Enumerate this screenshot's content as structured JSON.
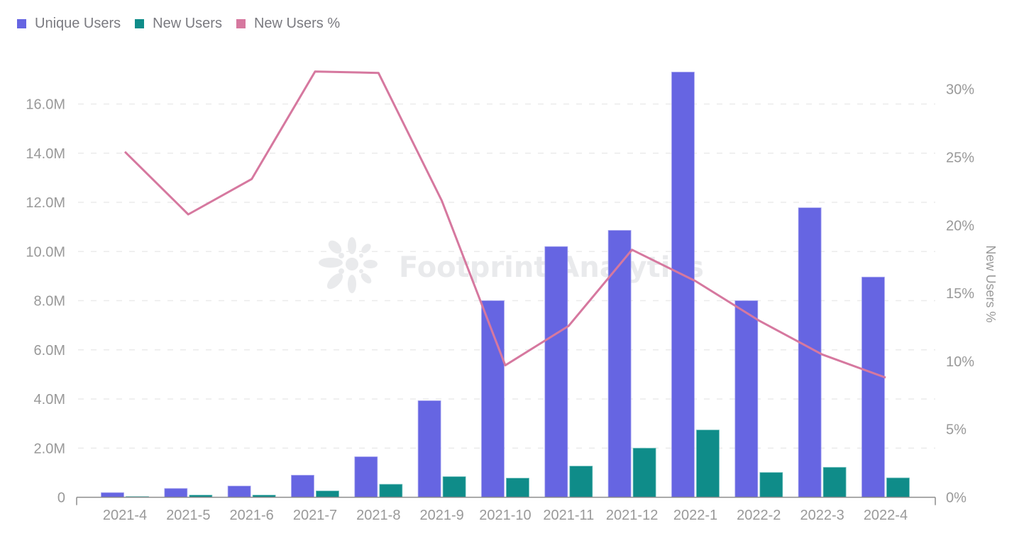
{
  "legend": {
    "items": [
      {
        "label": "Unique Users",
        "color": "#6665e2"
      },
      {
        "label": "New Users",
        "color": "#0f8c89"
      },
      {
        "label": "New Users %",
        "color": "#d6789f"
      }
    ]
  },
  "watermark": {
    "text": "Footprint Analytics"
  },
  "y_left": {
    "ticks": [
      {
        "value": 0,
        "label": "0"
      },
      {
        "value": 2000000,
        "label": "2.0M"
      },
      {
        "value": 4000000,
        "label": "4.0M"
      },
      {
        "value": 6000000,
        "label": "6.0M"
      },
      {
        "value": 8000000,
        "label": "8.0M"
      },
      {
        "value": 10000000,
        "label": "10.0M"
      },
      {
        "value": 12000000,
        "label": "12.0M"
      },
      {
        "value": 14000000,
        "label": "14.0M"
      },
      {
        "value": 16000000,
        "label": "16.0M"
      }
    ]
  },
  "y_right": {
    "title": "New Users %",
    "ticks": [
      {
        "value": 0,
        "label": "0%"
      },
      {
        "value": 5,
        "label": "5%"
      },
      {
        "value": 10,
        "label": "10%"
      },
      {
        "value": 15,
        "label": "15%"
      },
      {
        "value": 20,
        "label": "20%"
      },
      {
        "value": 25,
        "label": "25%"
      },
      {
        "value": 30,
        "label": "30%"
      }
    ]
  },
  "chart_data": {
    "type": "bar",
    "title": "",
    "xlabel": "",
    "ylabel": "",
    "y2label": "New Users %",
    "categories": [
      "2021-4",
      "2021-5",
      "2021-6",
      "2021-7",
      "2021-8",
      "2021-9",
      "2021-10",
      "2021-11",
      "2021-12",
      "2022-1",
      "2022-2",
      "2022-3",
      "2022-4"
    ],
    "series": [
      {
        "name": "Unique Users",
        "type": "bar",
        "axis": "left",
        "color": "#6665e2",
        "values": [
          190000,
          360000,
          460000,
          900000,
          1650000,
          3930000,
          8000000,
          10200000,
          10860000,
          17300000,
          8000000,
          11780000,
          8960000
        ]
      },
      {
        "name": "New Users",
        "type": "bar",
        "axis": "left",
        "color": "#0f8c89",
        "values": [
          30000,
          90000,
          90000,
          260000,
          530000,
          840000,
          780000,
          1270000,
          2000000,
          2740000,
          1010000,
          1220000,
          790000
        ]
      },
      {
        "name": "New Users %",
        "type": "line",
        "axis": "right",
        "color": "#d6789f",
        "values": [
          25.4,
          20.8,
          23.4,
          31.3,
          31.2,
          21.8,
          9.7,
          12.6,
          18.2,
          15.9,
          13.0,
          10.5,
          8.8
        ]
      }
    ],
    "ylim": [
      0,
      17300000
    ],
    "y2lim": [
      0,
      31.3
    ],
    "grid": true,
    "legend_position": "top-left"
  }
}
